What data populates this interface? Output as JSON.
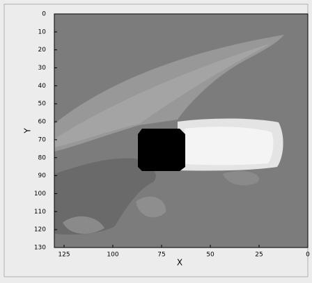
{
  "chart_data": {
    "type": "contour",
    "xlabel": "X",
    "ylabel": "Y",
    "xlim": [
      130,
      0
    ],
    "ylim": [
      0,
      130
    ],
    "xticks": [
      125,
      100,
      75,
      50,
      25,
      0
    ],
    "yticks": [
      0,
      10,
      20,
      30,
      40,
      50,
      60,
      70,
      80,
      90,
      100,
      110,
      120,
      130
    ]
  }
}
